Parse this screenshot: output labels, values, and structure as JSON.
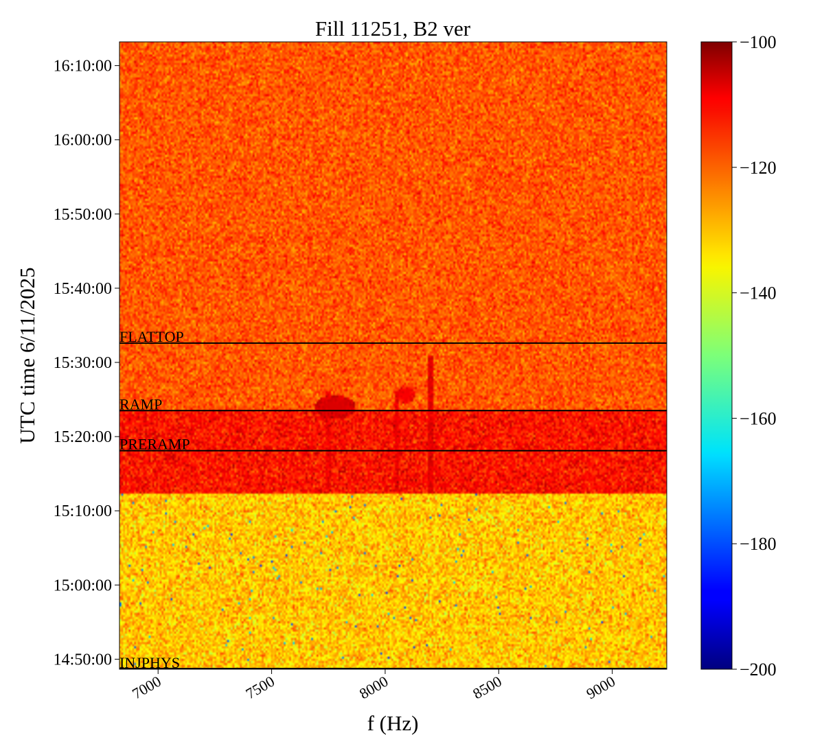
{
  "chart_data": {
    "type": "heatmap",
    "title": "Fill 11251, B2 ver",
    "xlabel": "f (Hz)",
    "ylabel": "UTC time 6/11/2025",
    "x_range_hz": [
      6830,
      9240
    ],
    "x_ticks": [
      {
        "value": 7000,
        "label": "7000"
      },
      {
        "value": 7500,
        "label": "7500"
      },
      {
        "value": 8000,
        "label": "8000"
      },
      {
        "value": 8500,
        "label": "8500"
      },
      {
        "value": 9000,
        "label": "9000"
      }
    ],
    "y_range_min": [
      -1.35,
      83.2
    ],
    "y_ticks": [
      {
        "value": 0,
        "label": "14:50:00"
      },
      {
        "value": 10,
        "label": "15:00:00"
      },
      {
        "value": 20,
        "label": "15:10:00"
      },
      {
        "value": 30,
        "label": "15:20:00"
      },
      {
        "value": 40,
        "label": "15:30:00"
      },
      {
        "value": 50,
        "label": "15:40:00"
      },
      {
        "value": 60,
        "label": "15:50:00"
      },
      {
        "value": 70,
        "label": "16:00:00"
      },
      {
        "value": 80,
        "label": "16:10:00"
      }
    ],
    "colormap": "jet",
    "colorbar": {
      "range": [
        -200,
        -100
      ],
      "ticks": [
        {
          "value": -100,
          "label": "−100"
        },
        {
          "value": -120,
          "label": "−120"
        },
        {
          "value": -140,
          "label": "−140"
        },
        {
          "value": -160,
          "label": "−160"
        },
        {
          "value": -180,
          "label": "−180"
        },
        {
          "value": -200,
          "label": "−200"
        }
      ]
    },
    "regions": [
      {
        "from_min": -1.35,
        "to_min": 22.3,
        "level_db": -132,
        "spread_db": 5
      },
      {
        "from_min": 22.3,
        "to_min": 33.5,
        "level_db": -114,
        "spread_db": 4
      },
      {
        "from_min": 33.5,
        "to_min": 83.2,
        "level_db": -121,
        "spread_db": 4
      }
    ],
    "vertical_lines": [
      {
        "freq_hz": 8200,
        "from_min": 22.3,
        "to_min": 41.0,
        "level_db": -110
      },
      {
        "freq_hz": 8050,
        "from_min": 22.5,
        "to_min": 36.0,
        "level_db": -111
      },
      {
        "freq_hz": 7750,
        "from_min": 23.0,
        "to_min": 36.0,
        "level_db": -113
      }
    ],
    "hot_spots": [
      {
        "freq_hz": 7780,
        "time_min": 34.0,
        "radius_hz": 90,
        "radius_min": 1.6,
        "level_db": -109
      },
      {
        "freq_hz": 8090,
        "time_min": 35.6,
        "radius_hz": 40,
        "radius_min": 1.2,
        "level_db": -112
      }
    ],
    "phase_markers": [
      {
        "label": "FLATTOP",
        "time_min": 42.6
      },
      {
        "label": "RAMP",
        "time_min": 33.5
      },
      {
        "label": "PRERAMP",
        "time_min": 28.1
      },
      {
        "label": "INJPHYS",
        "time_min": -1.35
      }
    ]
  }
}
